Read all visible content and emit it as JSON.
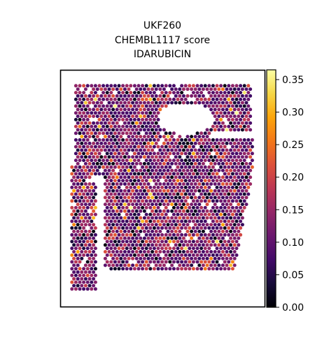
{
  "chart_data": {
    "type": "spatial-scatter",
    "title_lines": [
      "UKF260",
      "CHEMBL1117 score",
      "IDARUBICIN"
    ],
    "colorbar": {
      "colormap": "inferno",
      "range": [
        0.0,
        0.365
      ],
      "ticks": [
        0.0,
        0.05,
        0.1,
        0.15,
        0.2,
        0.25,
        0.3,
        0.35
      ],
      "tick_labels": [
        "0.00",
        "0.05",
        "0.10",
        "0.15",
        "0.20",
        "0.25",
        "0.30",
        "0.35"
      ]
    },
    "spot_value_summary": {
      "typical_low": 0.05,
      "typical_high": 0.2,
      "max": 0.36
    },
    "regions": [
      {
        "name": "main-tissue",
        "description": "large block with notch near top right"
      },
      {
        "name": "left-strip",
        "description": "narrow vertical strip on the left"
      }
    ],
    "axes_visible": false,
    "grid": false
  }
}
